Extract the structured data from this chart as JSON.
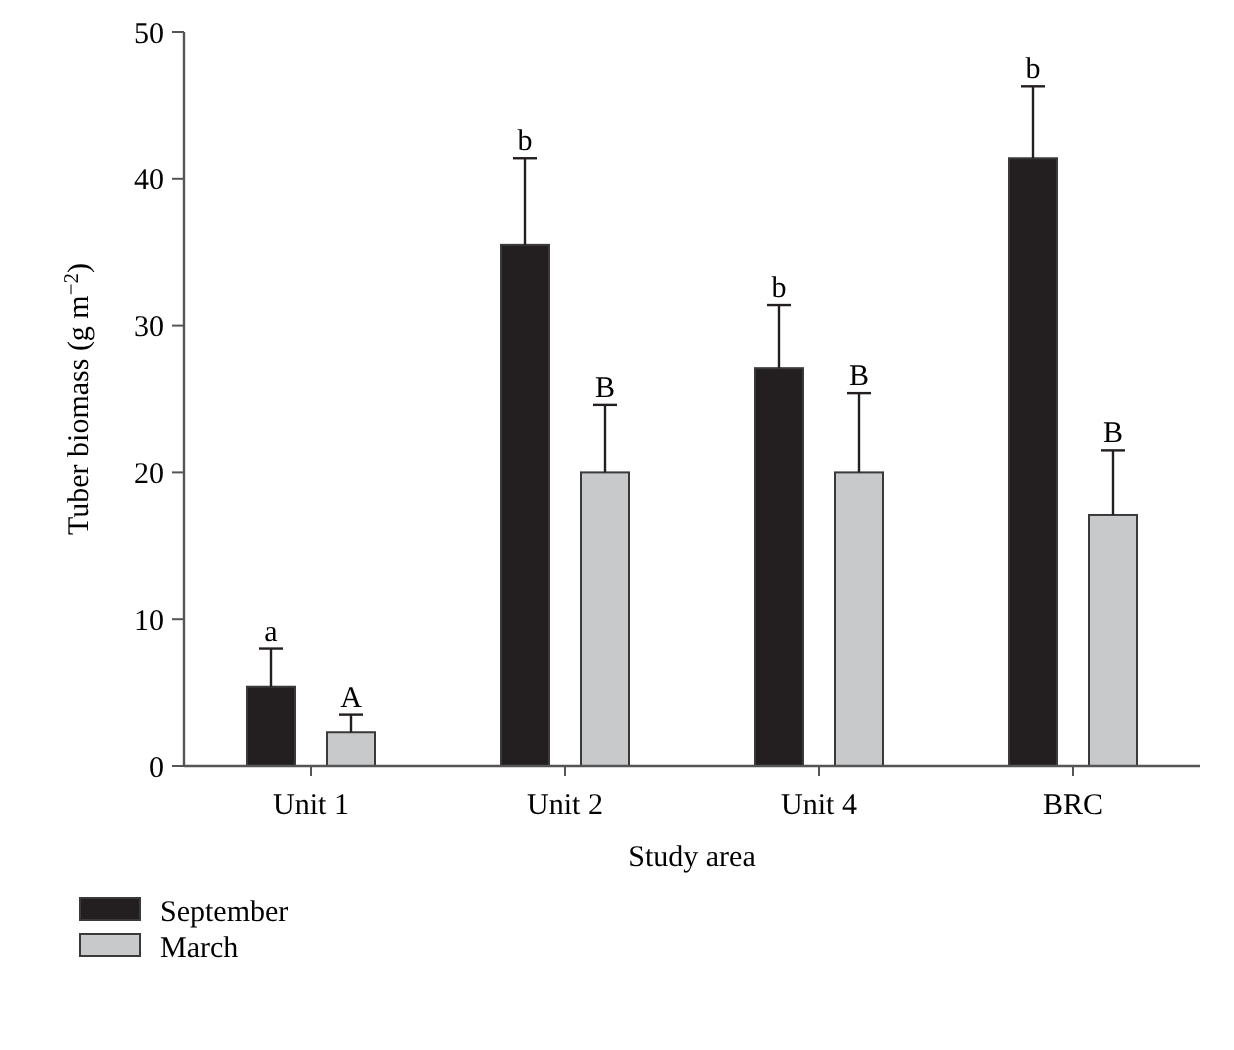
{
  "chart_data": {
    "type": "bar",
    "xlabel": "Study area",
    "ylabel": "Tuber biomass (g m$^{−2}$)",
    "categories": [
      "Unit 1",
      "Unit 2",
      "Unit 4",
      "BRC"
    ],
    "series": [
      {
        "name": "September",
        "color": "#231f20",
        "values": [
          5.4,
          35.5,
          27.1,
          41.4
        ],
        "errors": [
          [
            5.4,
            8.0
          ],
          [
            35.5,
            41.4
          ],
          [
            27.1,
            31.4
          ],
          [
            41.4,
            46.3
          ]
        ]
      },
      {
        "name": "March",
        "color": "#c8c9cb",
        "values": [
          2.3,
          20.0,
          20.0,
          17.1
        ],
        "errors": [
          [
            2.3,
            3.5
          ],
          [
            20.0,
            24.6
          ],
          [
            20.0,
            25.4
          ],
          [
            17.1,
            21.5
          ]
        ]
      }
    ],
    "ylim": [
      0,
      50
    ],
    "yticks": [
      0,
      10,
      20,
      30,
      40,
      50
    ],
    "legend": "bottom left",
    "annotations": [
      "a",
      "A",
      "b",
      "B",
      "b",
      "B",
      "b",
      "B"
    ]
  }
}
